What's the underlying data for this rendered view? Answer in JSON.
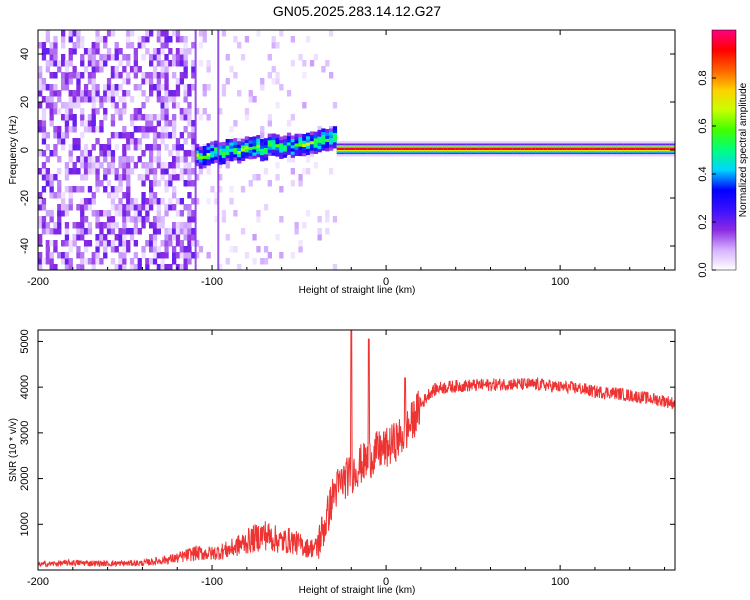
{
  "figure": {
    "title": "GN05.2025.283.14.12.G27"
  },
  "chart_data": [
    {
      "type": "heatmap",
      "xlabel": "Height of straight line (km)",
      "ylabel": "Frequency (Hz)",
      "xlim": [
        -200,
        166
      ],
      "ylim": [
        -50,
        50
      ],
      "xticks": [
        -200,
        -100,
        0,
        100
      ],
      "yticks": [
        -40,
        -20,
        0,
        20,
        40
      ],
      "colorbar": {
        "label": "Normalized spectral amplitude",
        "range": [
          0,
          1
        ],
        "ticks": [
          0.0,
          0.2,
          0.4,
          0.6,
          0.8
        ],
        "tick_labels": [
          "0.0",
          "0.2",
          "0.4",
          "0.6",
          "0.8"
        ],
        "colormap": [
          "#ffffff",
          "#d6b3ff",
          "#8a2be2",
          "#3a10ff",
          "#0000ff",
          "#00d4ff",
          "#00ff80",
          "#40ff00",
          "#c8ff00",
          "#ffd000",
          "#ff6000",
          "#ff0000",
          "#ff0080"
        ]
      },
      "features": {
        "noise_region_x": [
          -200,
          -110
        ],
        "transition_region_x": [
          -110,
          -30
        ],
        "signal_track": {
          "x_start": -30,
          "x_end": 166,
          "frequency": 0.5,
          "amplitude": 1.0
        },
        "signal_onset_frequency": [
          -3,
          4
        ]
      }
    },
    {
      "type": "line",
      "xlabel": "Height of straight line (km)",
      "ylabel": "SNR (10 * v/v)",
      "xlim": [
        -200,
        166
      ],
      "ylim": [
        0,
        5250
      ],
      "xticks": [
        -200,
        -100,
        0,
        100
      ],
      "yticks": [
        1000,
        2000,
        3000,
        4000,
        5000
      ],
      "series": [
        {
          "name": "SNR",
          "color": "#ee3333",
          "x": [
            -200,
            -180,
            -160,
            -140,
            -120,
            -110,
            -100,
            -90,
            -80,
            -70,
            -60,
            -55,
            -45,
            -40,
            -35,
            -30,
            -25,
            -20,
            -15,
            -10,
            -5,
            0,
            5,
            10,
            15,
            20,
            25,
            30,
            40,
            50,
            60,
            70,
            80,
            90,
            100,
            110,
            120,
            130,
            140,
            150,
            160,
            166
          ],
          "values": [
            120,
            160,
            140,
            150,
            260,
            370,
            360,
            450,
            620,
            780,
            620,
            650,
            480,
            500,
            1000,
            1700,
            1950,
            2100,
            2300,
            2400,
            2600,
            2650,
            2800,
            2950,
            3250,
            3600,
            3880,
            3980,
            4020,
            4040,
            4050,
            4070,
            4060,
            4050,
            4000,
            3980,
            3900,
            3880,
            3820,
            3760,
            3700,
            3640
          ]
        }
      ],
      "spikes": [
        {
          "x": -20,
          "value": 5300
        },
        {
          "x": -10,
          "value": 5050
        },
        {
          "x": 11,
          "value": 4200
        }
      ]
    }
  ]
}
